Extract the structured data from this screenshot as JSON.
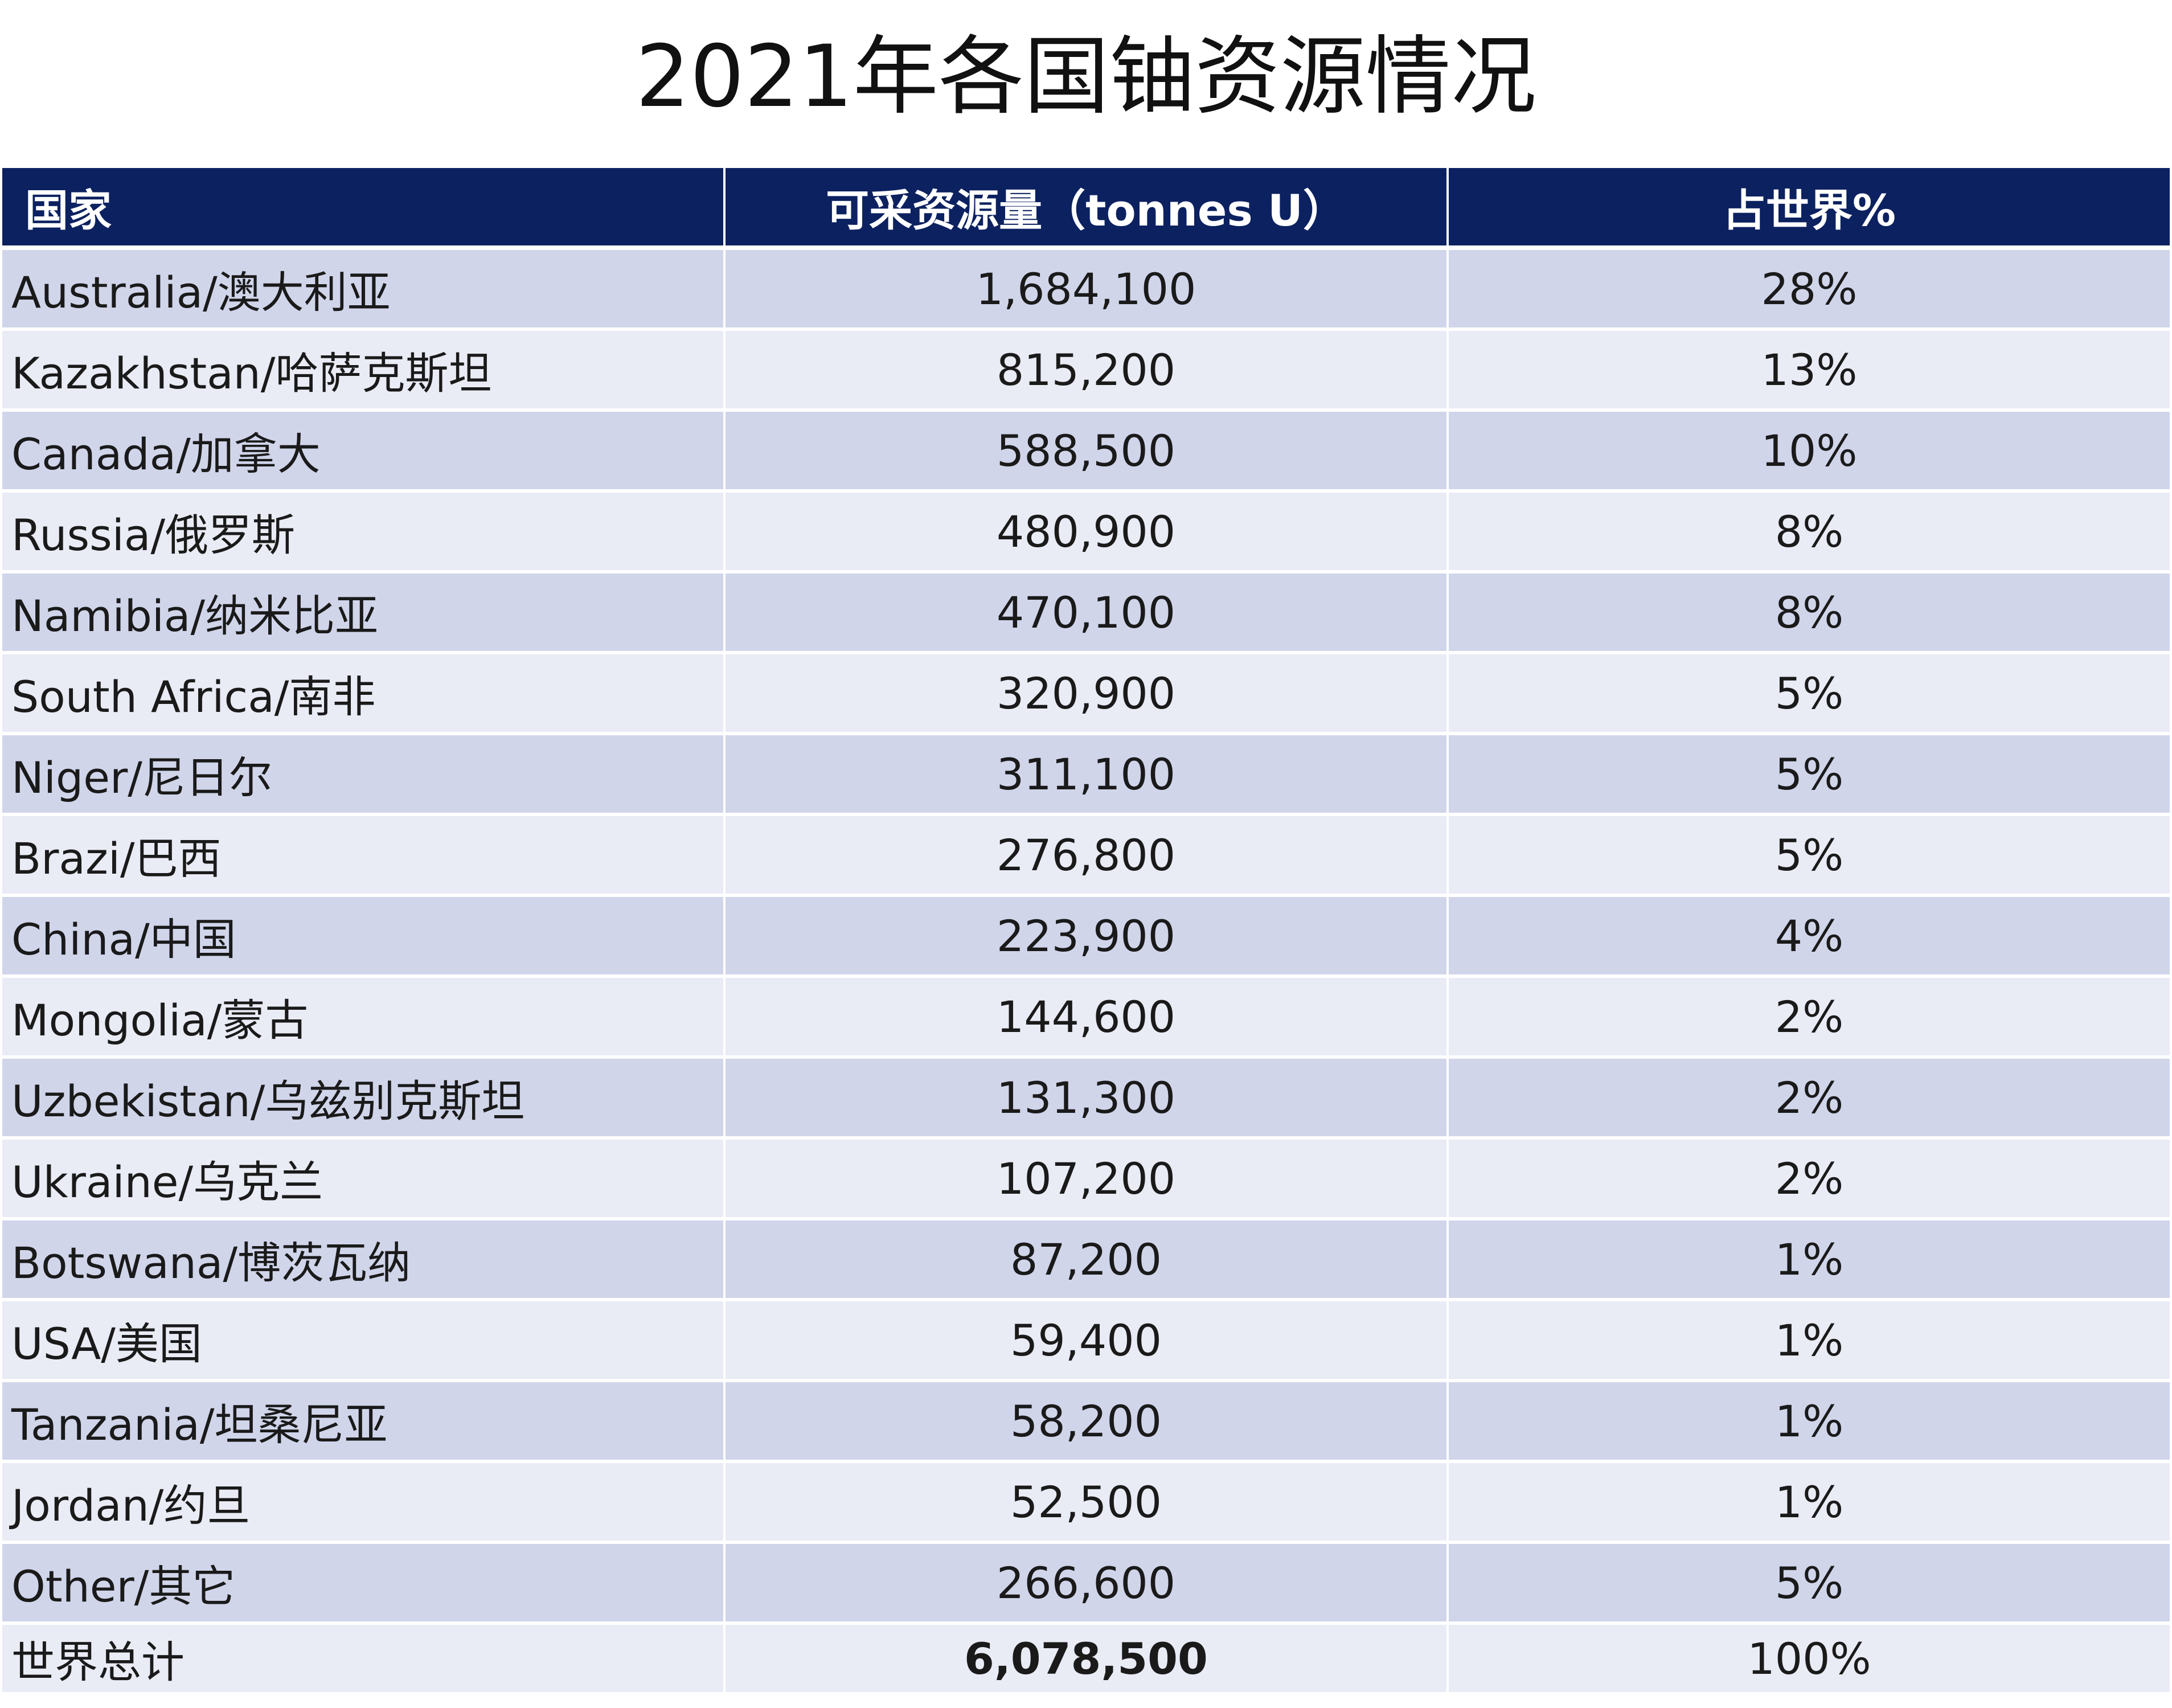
{
  "title": "2021年各国铀资源情况",
  "table": {
    "headers": [
      "国家",
      "可采资源量（tonnes U）",
      "占世界%"
    ],
    "rows": [
      {
        "country": "Australia/澳大利亚",
        "resources": "1,684,100",
        "share": "28%"
      },
      {
        "country": "Kazakhstan/哈萨克斯坦",
        "resources": "815,200",
        "share": "13%"
      },
      {
        "country": "Canada/加拿大",
        "resources": "588,500",
        "share": "10%"
      },
      {
        "country": "Russia/俄罗斯",
        "resources": "480,900",
        "share": "8%"
      },
      {
        "country": "Namibia/纳米比亚",
        "resources": "470,100",
        "share": "8%"
      },
      {
        "country": "South Africa/南非",
        "resources": "320,900",
        "share": "5%"
      },
      {
        "country": "Niger/尼日尔",
        "resources": "311,100",
        "share": "5%"
      },
      {
        "country": "Brazi/巴西",
        "resources": "276,800",
        "share": "5%"
      },
      {
        "country": "China/中国",
        "resources": "223,900",
        "share": "4%"
      },
      {
        "country": "Mongolia/蒙古",
        "resources": "144,600",
        "share": "2%"
      },
      {
        "country": "Uzbekistan/乌兹别克斯坦",
        "resources": "131,300",
        "share": "2%"
      },
      {
        "country": "Ukraine/乌克兰",
        "resources": "107,200",
        "share": "2%"
      },
      {
        "country": "Botswana/博茨瓦纳",
        "resources": "87,200",
        "share": "1%"
      },
      {
        "country": "USA/美国",
        "resources": "59,400",
        "share": "1%"
      },
      {
        "country": "Tanzania/坦桑尼亚",
        "resources": "58,200",
        "share": "1%"
      },
      {
        "country": "Jordan/约旦",
        "resources": "52,500",
        "share": "1%"
      },
      {
        "country": "Other/其它",
        "resources": "266,600",
        "share": "5%"
      }
    ],
    "total": {
      "label": "世界总计",
      "resources": "6,078,500",
      "share": "100%"
    }
  },
  "colors": {
    "header_bg": "#0c2160",
    "row_dark": "#d0d5ea",
    "row_light": "#e9ebf5"
  }
}
